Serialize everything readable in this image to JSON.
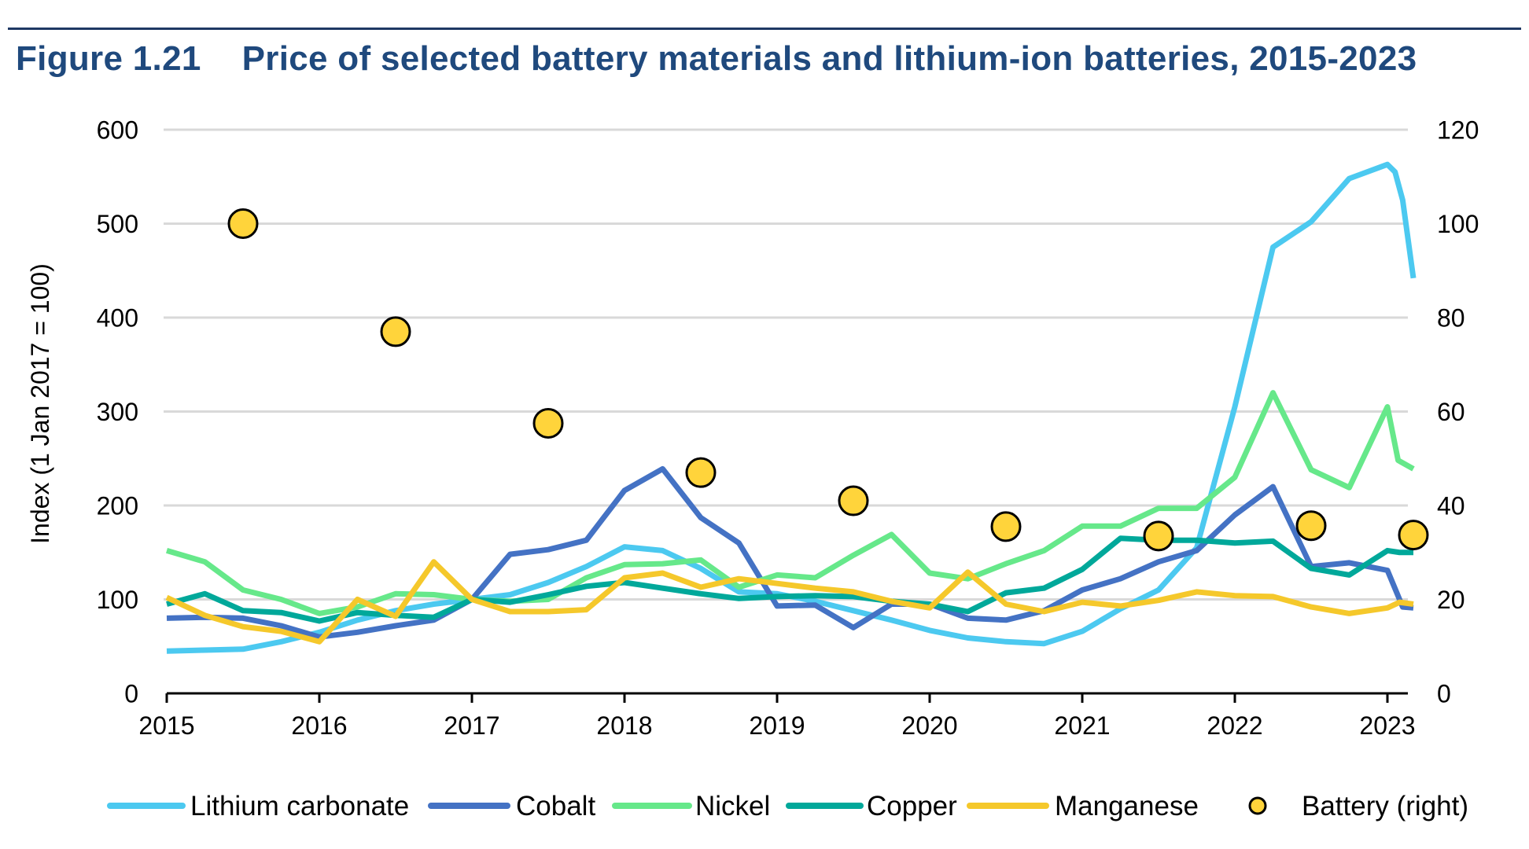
{
  "figure": {
    "number": "Figure 1.21",
    "title": "Price of selected battery materials and lithium-ion batteries, 2015-2023"
  },
  "chart_data": {
    "type": "line",
    "title": "Price of selected battery materials and lithium-ion batteries, 2015-2023",
    "ylabel": "Index (1 Jan 2017 = 100)",
    "y2label": "",
    "xlim": [
      2015,
      2023.2
    ],
    "ylim": [
      0,
      600
    ],
    "y2lim": [
      0,
      120
    ],
    "x_ticks": [
      2015,
      2016,
      2017,
      2018,
      2019,
      2020,
      2021,
      2022,
      2023
    ],
    "x_tick_labels": [
      "2015",
      "2016",
      "2017",
      "2018",
      "2019",
      "2020",
      "2021",
      "2022",
      "2023"
    ],
    "y_ticks": [
      0,
      100,
      200,
      300,
      400,
      500,
      600
    ],
    "y_tick_labels": [
      "0",
      "100",
      "200",
      "300",
      "400",
      "500",
      "600"
    ],
    "y2_ticks": [
      0,
      20,
      40,
      60,
      80,
      100,
      120
    ],
    "y2_tick_labels": [
      "0",
      "20",
      "40",
      "60",
      "80",
      "100",
      "120"
    ],
    "grid": true,
    "legend_position": "bottom",
    "series": [
      {
        "name": "Lithium carbonate",
        "color": "#4cc9f0",
        "axis": "left",
        "style": "line",
        "points": [
          [
            2015,
            45
          ],
          [
            2015.25,
            46
          ],
          [
            2015.5,
            47
          ],
          [
            2015.75,
            55
          ],
          [
            2016,
            65
          ],
          [
            2016.25,
            78
          ],
          [
            2016.5,
            88
          ],
          [
            2016.75,
            95
          ],
          [
            2017,
            100
          ],
          [
            2017.25,
            105
          ],
          [
            2017.5,
            118
          ],
          [
            2017.75,
            135
          ],
          [
            2018,
            156
          ],
          [
            2018.25,
            152
          ],
          [
            2018.5,
            133
          ],
          [
            2018.75,
            108
          ],
          [
            2019,
            106
          ],
          [
            2019.25,
            98
          ],
          [
            2019.5,
            88
          ],
          [
            2019.75,
            78
          ],
          [
            2020,
            67
          ],
          [
            2020.25,
            59
          ],
          [
            2020.5,
            55
          ],
          [
            2020.75,
            53
          ],
          [
            2021,
            66
          ],
          [
            2021.25,
            90
          ],
          [
            2021.5,
            110
          ],
          [
            2021.75,
            155
          ],
          [
            2022,
            305
          ],
          [
            2022.25,
            475
          ],
          [
            2022.5,
            502
          ],
          [
            2022.75,
            548
          ],
          [
            2023,
            563
          ],
          [
            2023.05,
            555
          ],
          [
            2023.1,
            525
          ],
          [
            2023.17,
            442
          ]
        ]
      },
      {
        "name": "Cobalt",
        "color": "#4472c4",
        "axis": "left",
        "style": "line",
        "points": [
          [
            2015,
            80
          ],
          [
            2015.25,
            81
          ],
          [
            2015.5,
            80
          ],
          [
            2015.75,
            72
          ],
          [
            2016,
            60
          ],
          [
            2016.25,
            65
          ],
          [
            2016.5,
            72
          ],
          [
            2016.75,
            78
          ],
          [
            2017,
            100
          ],
          [
            2017.25,
            148
          ],
          [
            2017.5,
            153
          ],
          [
            2017.75,
            163
          ],
          [
            2018,
            216
          ],
          [
            2018.25,
            239
          ],
          [
            2018.5,
            187
          ],
          [
            2018.75,
            160
          ],
          [
            2019,
            93
          ],
          [
            2019.25,
            94
          ],
          [
            2019.5,
            70
          ],
          [
            2019.75,
            95
          ],
          [
            2020,
            95
          ],
          [
            2020.25,
            80
          ],
          [
            2020.5,
            78
          ],
          [
            2020.75,
            88
          ],
          [
            2021,
            110
          ],
          [
            2021.25,
            122
          ],
          [
            2021.5,
            140
          ],
          [
            2021.75,
            152
          ],
          [
            2022,
            190
          ],
          [
            2022.25,
            220
          ],
          [
            2022.5,
            135
          ],
          [
            2022.75,
            139
          ],
          [
            2023,
            131
          ],
          [
            2023.1,
            92
          ],
          [
            2023.17,
            91
          ]
        ]
      },
      {
        "name": "Nickel",
        "color": "#66e88a",
        "axis": "left",
        "style": "line",
        "points": [
          [
            2015,
            152
          ],
          [
            2015.25,
            140
          ],
          [
            2015.5,
            110
          ],
          [
            2015.75,
            100
          ],
          [
            2016,
            85
          ],
          [
            2016.25,
            92
          ],
          [
            2016.5,
            106
          ],
          [
            2016.75,
            105
          ],
          [
            2017,
            100
          ],
          [
            2017.25,
            98
          ],
          [
            2017.5,
            100
          ],
          [
            2017.75,
            123
          ],
          [
            2018,
            137
          ],
          [
            2018.25,
            138
          ],
          [
            2018.5,
            142
          ],
          [
            2018.75,
            113
          ],
          [
            2019,
            126
          ],
          [
            2019.25,
            123
          ],
          [
            2019.5,
            147
          ],
          [
            2019.75,
            169
          ],
          [
            2020,
            128
          ],
          [
            2020.25,
            122
          ],
          [
            2020.5,
            138
          ],
          [
            2020.75,
            152
          ],
          [
            2021,
            178
          ],
          [
            2021.25,
            178
          ],
          [
            2021.5,
            197
          ],
          [
            2021.75,
            197
          ],
          [
            2022,
            230
          ],
          [
            2022.25,
            320
          ],
          [
            2022.5,
            238
          ],
          [
            2022.75,
            219
          ],
          [
            2023,
            305
          ],
          [
            2023.07,
            248
          ],
          [
            2023.17,
            239
          ]
        ]
      },
      {
        "name": "Copper",
        "color": "#00a89a",
        "axis": "left",
        "style": "line",
        "points": [
          [
            2015,
            95
          ],
          [
            2015.25,
            106
          ],
          [
            2015.5,
            88
          ],
          [
            2015.75,
            86
          ],
          [
            2016,
            77
          ],
          [
            2016.25,
            86
          ],
          [
            2016.5,
            83
          ],
          [
            2016.75,
            81
          ],
          [
            2017,
            100
          ],
          [
            2017.25,
            97
          ],
          [
            2017.5,
            105
          ],
          [
            2017.75,
            114
          ],
          [
            2018,
            118
          ],
          [
            2018.25,
            112
          ],
          [
            2018.5,
            106
          ],
          [
            2018.75,
            101
          ],
          [
            2019,
            103
          ],
          [
            2019.25,
            104
          ],
          [
            2019.5,
            103
          ],
          [
            2019.75,
            98
          ],
          [
            2020,
            95
          ],
          [
            2020.25,
            87
          ],
          [
            2020.5,
            107
          ],
          [
            2020.75,
            112
          ],
          [
            2021,
            132
          ],
          [
            2021.25,
            165
          ],
          [
            2021.5,
            163
          ],
          [
            2021.75,
            163
          ],
          [
            2022,
            160
          ],
          [
            2022.25,
            162
          ],
          [
            2022.5,
            133
          ],
          [
            2022.75,
            126
          ],
          [
            2023,
            152
          ],
          [
            2023.08,
            150
          ],
          [
            2023.17,
            150
          ]
        ]
      },
      {
        "name": "Manganese",
        "color": "#f5c82b",
        "axis": "left",
        "style": "line",
        "points": [
          [
            2015,
            102
          ],
          [
            2015.25,
            83
          ],
          [
            2015.5,
            71
          ],
          [
            2015.75,
            66
          ],
          [
            2016,
            55
          ],
          [
            2016.25,
            100
          ],
          [
            2016.5,
            82
          ],
          [
            2016.75,
            140
          ],
          [
            2017,
            100
          ],
          [
            2017.25,
            87
          ],
          [
            2017.5,
            87
          ],
          [
            2017.75,
            89
          ],
          [
            2018,
            123
          ],
          [
            2018.25,
            128
          ],
          [
            2018.5,
            113
          ],
          [
            2018.75,
            122
          ],
          [
            2019,
            117
          ],
          [
            2019.25,
            112
          ],
          [
            2019.5,
            108
          ],
          [
            2019.75,
            98
          ],
          [
            2020,
            91
          ],
          [
            2020.25,
            129
          ],
          [
            2020.5,
            95
          ],
          [
            2020.75,
            87
          ],
          [
            2021,
            97
          ],
          [
            2021.25,
            93
          ],
          [
            2021.5,
            99
          ],
          [
            2021.75,
            108
          ],
          [
            2022,
            104
          ],
          [
            2022.25,
            103
          ],
          [
            2022.5,
            92
          ],
          [
            2022.75,
            85
          ],
          [
            2023,
            91
          ],
          [
            2023.08,
            97
          ],
          [
            2023.17,
            95
          ]
        ]
      },
      {
        "name": "Battery (right)",
        "color": "#ffd43b",
        "axis": "right",
        "style": "marker",
        "points": [
          [
            2015.5,
            100
          ],
          [
            2016.5,
            77
          ],
          [
            2017.5,
            57.5
          ],
          [
            2018.5,
            47
          ],
          [
            2019.5,
            41
          ],
          [
            2020.5,
            35.5
          ],
          [
            2021.5,
            33.5
          ],
          [
            2022.5,
            35.7
          ],
          [
            2023.17,
            33.7
          ]
        ]
      }
    ]
  }
}
